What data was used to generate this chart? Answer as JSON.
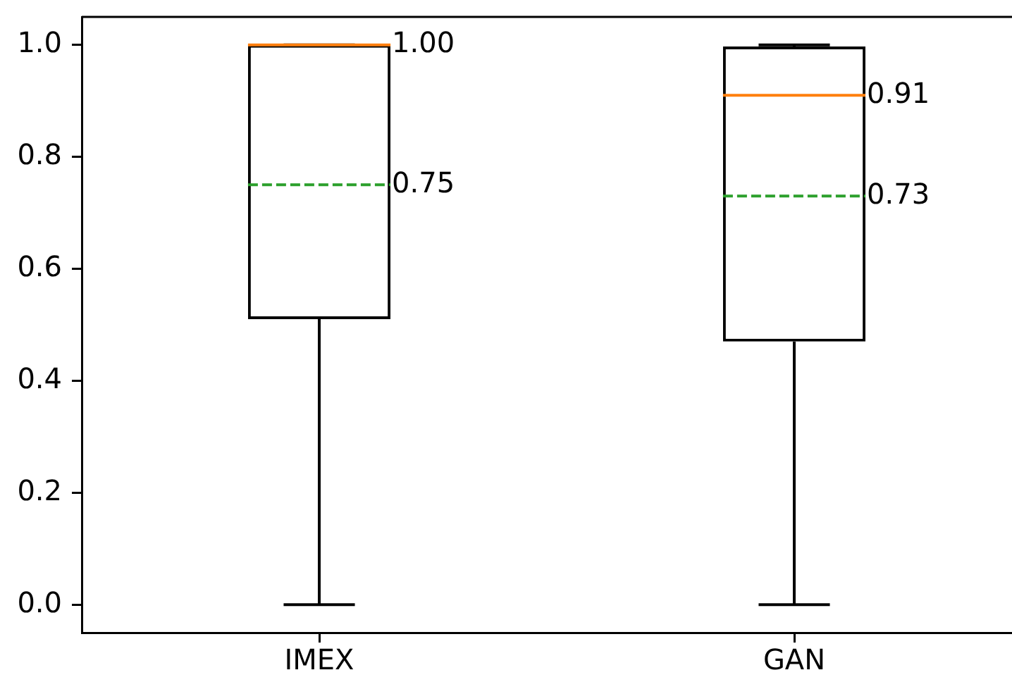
{
  "chart_data": {
    "type": "box",
    "categories": [
      "IMEX",
      "GAN"
    ],
    "color": "#000000",
    "boxes": [
      {
        "low": 0,
        "q1": 0.51,
        "median": 1.0,
        "q3": 1.0,
        "high": 1.0,
        "mean": 0.75
      },
      {
        "low": 0,
        "q1": 0.47,
        "median": 0.91,
        "q3": 0.997,
        "high": 1.0,
        "mean": 0.73
      }
    ],
    "ylim": [
      -0.05,
      1.05
    ],
    "yticks": [
      {
        "value": 0,
        "label": "0.0"
      },
      0.2,
      0.4,
      0.6,
      0.8,
      {
        "value": 1,
        "label": "1.0"
      }
    ],
    "annotations": [
      {
        "text": "1.00",
        "x": "IMEX",
        "y": 1.0
      },
      {
        "text": "0.75",
        "x": "IMEX",
        "y": 0.75
      },
      {
        "text": "0.91",
        "x": "GAN",
        "y": 0.91
      },
      {
        "text": "0.73",
        "x": "GAN",
        "y": 0.73
      }
    ],
    "grid": false,
    "legend": false
  }
}
